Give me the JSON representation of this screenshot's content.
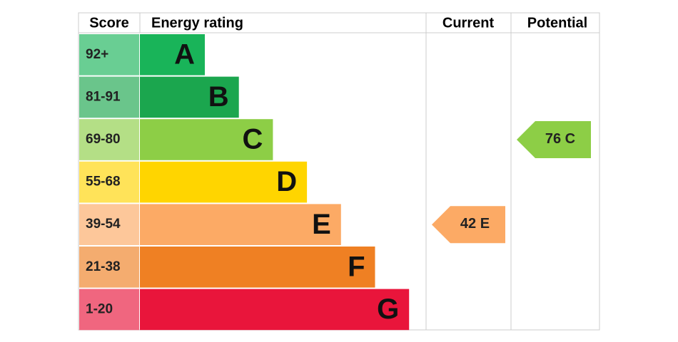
{
  "headers": [
    "Score",
    "Energy rating",
    "Current",
    "Potential"
  ],
  "rows": [
    {
      "score": "92+",
      "band": "A",
      "color": "#19b459"
    },
    {
      "score": "81-91",
      "band": "B",
      "color": "#1ba64e"
    },
    {
      "score": "69-80",
      "band": "C",
      "color": "#8dce46"
    },
    {
      "score": "55-68",
      "band": "D",
      "color": "#ffd500"
    },
    {
      "score": "39-54",
      "band": "E",
      "color": "#fcaa65"
    },
    {
      "score": "21-38",
      "band": "F",
      "color": "#ef8023"
    },
    {
      "score": "1-20",
      "band": "G",
      "color": "#e9153b"
    }
  ],
  "current": {
    "score": 42,
    "rating": "E"
  },
  "potential": {
    "score": 76,
    "rating": "C"
  }
}
